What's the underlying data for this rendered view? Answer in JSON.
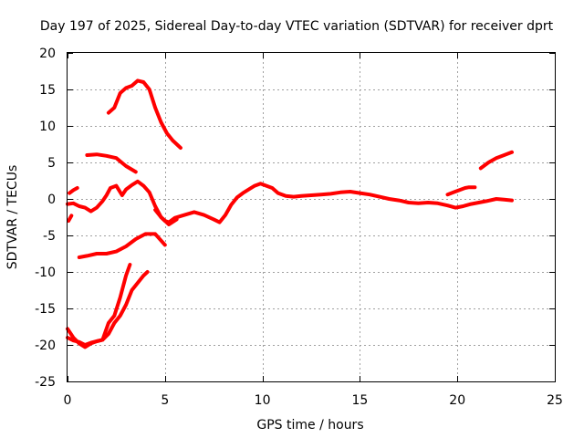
{
  "chart_data": {
    "type": "line",
    "title": "Day 197 of 2025, Sidereal Day-to-day VTEC variation (SDTVAR) for receiver dprt",
    "xlabel": "GPS time / hours",
    "ylabel": "SDTVAR / TECUs",
    "xlim": [
      0,
      25
    ],
    "ylim": [
      -25,
      20
    ],
    "xticks": [
      0,
      5,
      10,
      15,
      20,
      25
    ],
    "yticks": [
      -25,
      -20,
      -15,
      -10,
      -5,
      0,
      5,
      10,
      15,
      20
    ],
    "grid": true,
    "color": "#ff0000",
    "series": [
      {
        "name": "arc-main",
        "x": [
          4.5,
          4.8,
          5.0,
          5.2,
          5.5,
          6.0,
          6.5,
          7.0,
          7.5,
          7.8,
          8.1,
          8.4,
          8.7,
          9.0,
          9.3,
          9.6,
          9.9,
          10.2,
          10.5,
          10.8,
          11.2,
          11.6,
          12.0,
          12.5,
          13.0,
          13.5,
          14.0,
          14.5,
          15.0,
          15.5,
          16.0,
          16.5,
          17.0,
          17.5,
          18.0,
          18.5,
          19.0,
          19.5,
          19.9,
          20.3,
          20.7,
          21.1,
          21.5,
          22.0,
          22.4,
          22.8
        ],
        "y": [
          -1.5,
          -2.5,
          -3.0,
          -3.2,
          -2.6,
          -2.2,
          -1.8,
          -2.2,
          -2.8,
          -3.2,
          -2.2,
          -0.8,
          0.2,
          0.8,
          1.3,
          1.8,
          2.1,
          1.8,
          1.5,
          0.8,
          0.4,
          0.3,
          0.4,
          0.5,
          0.6,
          0.7,
          0.9,
          1.0,
          0.8,
          0.6,
          0.3,
          0.0,
          -0.2,
          -0.5,
          -0.6,
          -0.5,
          -0.6,
          -0.9,
          -1.2,
          -1.0,
          -0.7,
          -0.5,
          -0.3,
          0.0,
          -0.1,
          -0.2
        ]
      },
      {
        "name": "arc-upper-right",
        "x": [
          19.5,
          19.8,
          20.1,
          20.4,
          20.6,
          20.9
        ],
        "y": [
          0.6,
          0.9,
          1.2,
          1.5,
          1.6,
          1.6
        ]
      },
      {
        "name": "arc-far-right",
        "x": [
          21.2,
          21.6,
          22.0,
          22.4,
          22.8
        ],
        "y": [
          4.2,
          5.0,
          5.6,
          6.0,
          6.4
        ]
      },
      {
        "name": "arc-early-a",
        "x": [
          0.0,
          0.3,
          0.6,
          0.9,
          1.2,
          1.5,
          1.8,
          2.0,
          2.2,
          2.5,
          2.8,
          3.0,
          3.3,
          3.6,
          3.9,
          4.2,
          4.5,
          4.8,
          5.2,
          5.6
        ],
        "y": [
          -0.7,
          -0.6,
          -1.0,
          -1.2,
          -1.7,
          -1.2,
          -0.3,
          0.5,
          1.5,
          1.8,
          0.5,
          1.3,
          1.9,
          2.4,
          1.8,
          0.9,
          -1.0,
          -2.5,
          -3.5,
          -2.8
        ]
      },
      {
        "name": "arc-early-b",
        "x": [
          0.1,
          0.3,
          0.5
        ],
        "y": [
          0.8,
          1.2,
          1.5
        ]
      },
      {
        "name": "arc-early-c",
        "x": [
          0.05,
          0.2
        ],
        "y": [
          -3.0,
          -2.3
        ]
      },
      {
        "name": "arc-6",
        "x": [
          1.0,
          1.5,
          2.0,
          2.5,
          3.0,
          3.5
        ],
        "y": [
          6.0,
          6.1,
          5.9,
          5.6,
          4.5,
          3.7
        ]
      },
      {
        "name": "arc-15",
        "x": [
          2.1,
          2.4,
          2.7,
          3.0,
          3.3,
          3.6,
          3.9,
          4.2,
          4.5,
          4.8,
          5.1,
          5.4,
          5.8
        ],
        "y": [
          11.8,
          12.5,
          14.5,
          15.2,
          15.5,
          16.2,
          16.0,
          15.0,
          12.5,
          10.5,
          9.0,
          8.0,
          7.0
        ]
      },
      {
        "name": "arc-neg5",
        "x": [
          0.6,
          1.0,
          1.5,
          2.0,
          2.5,
          3.0,
          3.5,
          4.0,
          4.5,
          5.0
        ],
        "y": [
          -8.0,
          -7.8,
          -7.5,
          -7.5,
          -7.2,
          -6.5,
          -5.5,
          -4.8,
          -4.8,
          -6.3
        ]
      },
      {
        "name": "arc-neg20-a",
        "x": [
          0.0,
          0.3,
          0.6,
          0.9,
          1.2,
          1.5,
          1.8,
          2.1,
          2.4,
          2.7,
          3.0,
          3.2
        ],
        "y": [
          -17.8,
          -19.0,
          -19.8,
          -20.3,
          -19.8,
          -19.5,
          -19.3,
          -17.0,
          -16.0,
          -13.5,
          -10.5,
          -9.0
        ]
      },
      {
        "name": "arc-neg20-b",
        "x": [
          0.0,
          0.3,
          0.6,
          0.9,
          1.2,
          1.5,
          1.8,
          2.1,
          2.4,
          2.7,
          3.0,
          3.3,
          3.6,
          3.9,
          4.1
        ],
        "y": [
          -19.0,
          -19.4,
          -19.6,
          -20.0,
          -19.7,
          -19.5,
          -19.3,
          -18.5,
          -17.0,
          -16.0,
          -14.5,
          -12.5,
          -11.5,
          -10.5,
          -10.0
        ]
      }
    ]
  }
}
